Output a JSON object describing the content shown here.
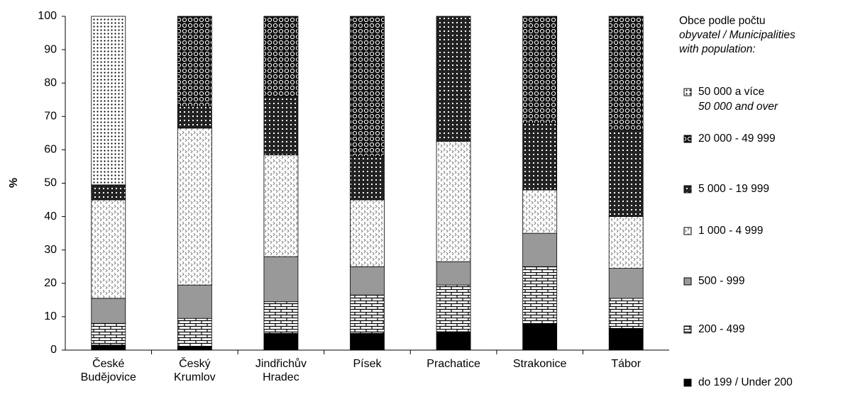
{
  "chart_data": {
    "type": "stacked_bar",
    "y_label": "%",
    "legend_title": [
      "Obce podle počtu",
      "obyvatel / Municipalities",
      "with population:"
    ],
    "categories": [
      "České Budějovice",
      "Český Krumlov",
      "Jindřichův Hradec",
      "Písek",
      "Prachatice",
      "Strakonice",
      "Tábor"
    ],
    "ylim": [
      0,
      100
    ],
    "yticks": [
      0,
      10,
      20,
      30,
      40,
      50,
      60,
      70,
      80,
      90,
      100
    ],
    "legend": "right",
    "series": [
      {
        "name": "do 199 / Under 200",
        "color": "#000000",
        "pattern": "solid",
        "values": [
          1.5,
          1,
          5,
          5,
          5.5,
          8,
          6.5
        ]
      },
      {
        "name": "200 - 499",
        "color": "#000000",
        "pattern": "brick",
        "values": [
          6.5,
          8.5,
          9.5,
          11.5,
          14,
          17,
          9
        ]
      },
      {
        "name": "500 - 999",
        "color": "#999999",
        "pattern": "solid",
        "values": [
          7.5,
          10,
          13.5,
          8.5,
          7,
          10,
          9
        ]
      },
      {
        "name": "1 000 - 4 999",
        "color": "#888888",
        "pattern": "chevron",
        "values": [
          29.5,
          47,
          30.5,
          20,
          36,
          13,
          15.5
        ]
      },
      {
        "name": "5 000 - 19 999",
        "color": "#000000",
        "pattern": "check",
        "values": [
          4.5,
          6.5,
          17.5,
          13,
          37.5,
          20,
          26
        ]
      },
      {
        "name": "20 000 - 49 999",
        "color": "#000000",
        "pattern": "rings",
        "values": [
          0,
          27,
          24,
          42,
          0,
          32,
          34
        ]
      },
      {
        "name": "50 000 a více",
        "name_en": "50 000 and over",
        "color": "#000000",
        "pattern": "dots",
        "values": [
          50.5,
          0,
          0,
          0,
          0,
          0,
          0
        ]
      }
    ]
  }
}
